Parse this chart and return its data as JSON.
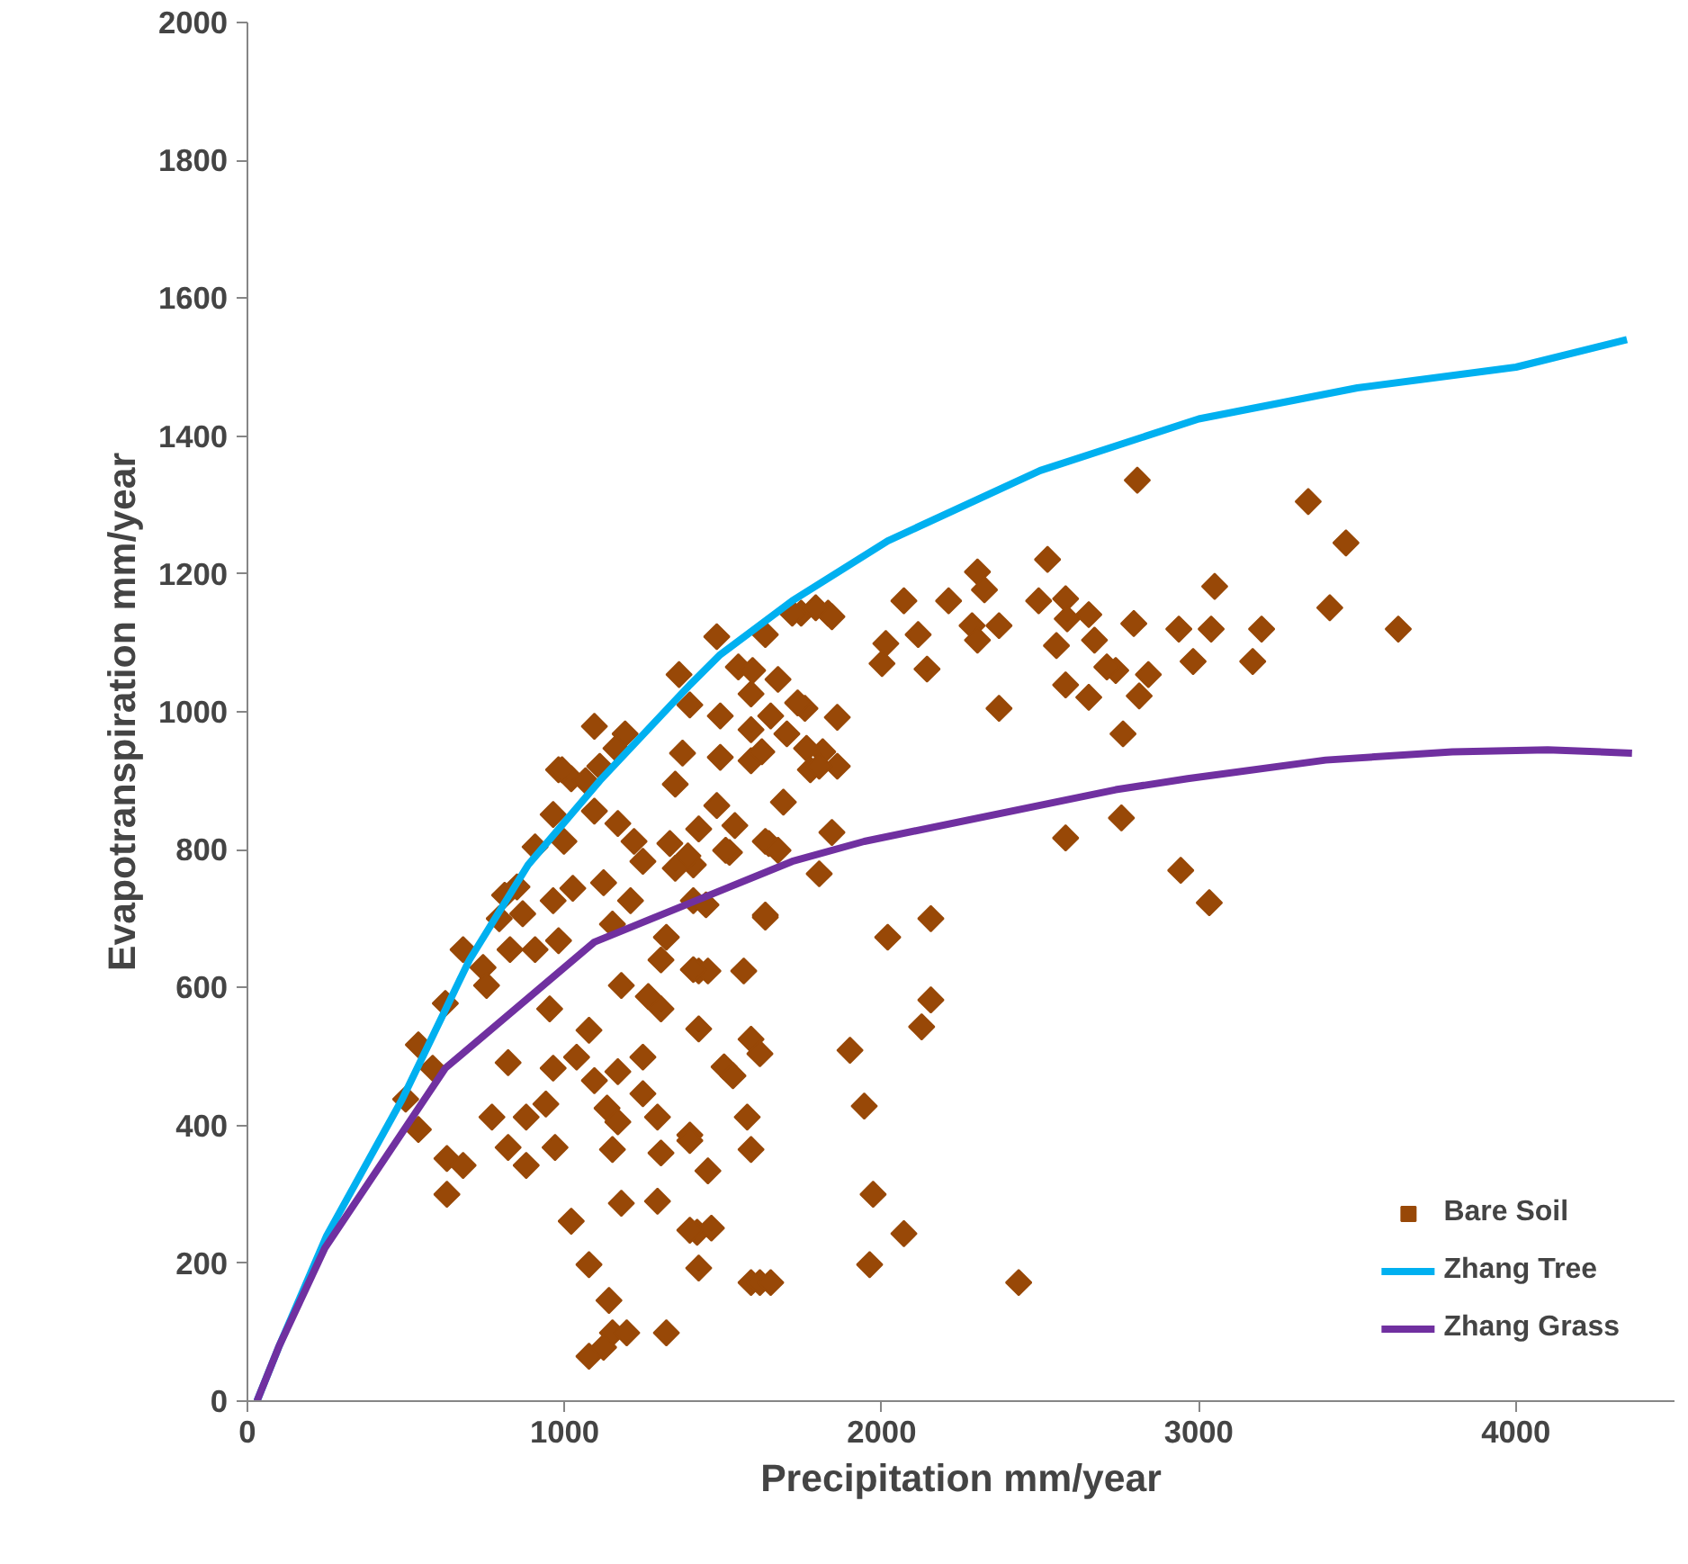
{
  "chart_data": {
    "type": "scatter",
    "xlabel": "Precipitation mm/year",
    "ylabel": "Evapotranspiration mm/year",
    "xlim": [
      0,
      4500
    ],
    "ylim": [
      0,
      2000
    ],
    "xticks": [
      0,
      1000,
      2000,
      3000,
      4000
    ],
    "yticks": [
      0,
      200,
      400,
      600,
      800,
      1000,
      1200,
      1400,
      1600,
      1800,
      2000
    ],
    "grid": false,
    "legend": "bottom right",
    "series": [
      {
        "name": "Bare Soil",
        "marker": "diamond",
        "color": "#984807",
        "x": [
          2806,
          3345,
          3464,
          3050,
          2795,
          2937,
          3039,
          3198,
          3413,
          3629,
          2982,
          3170,
          2841,
          2812,
          2761,
          2756,
          2943,
          3033,
          2738,
          2523,
          2302,
          2324,
          2211,
          2070,
          2495,
          2580,
          2285,
          2370,
          2585,
          2653,
          2115,
          2013,
          2302,
          2551,
          2671,
          2001,
          2143,
          2710,
          2580,
          2653,
          2370,
          1860,
          1843,
          1803,
          2580,
          2019,
          2155,
          2155,
          2126,
          1900,
          1945,
          1973,
          2070,
          1962,
          2432,
          1746,
          1831,
          1758,
          1814,
          1860,
          1775,
          1633,
          1565,
          1423,
          1452,
          1423,
          1588,
          1616,
          1503,
          1531,
          1576,
          1588,
          1395,
          1452,
          1418,
          1463,
          1423,
          1588,
          1616,
          1650,
          1406,
          1520,
          1644,
          1792,
          1718,
          1843,
          1633,
          1480,
          1361,
          1548,
          1593,
          1673,
          1588,
          1735,
          1395,
          1491,
          1650,
          1094,
          1191,
          1162,
          1588,
          1701,
          1763,
          1803,
          1372,
          1491,
          1588,
          1622,
          981,
          1021,
          1111,
          1349,
          1690,
          1480,
          1094,
          1168,
          1423,
          1537,
          1633,
          1673,
          964,
          998,
          1219,
          1332,
          1389,
          1247,
          1349,
          1508,
          1026,
          1123,
          1208,
          964,
          1406,
          1633,
          1151,
          1321,
          1446,
          981,
          1304,
          1406,
          1179,
          992,
          1066,
          907,
          811,
          794,
          680,
          743,
          624,
          539,
          499,
          539,
          629,
          629,
          680,
          584,
          850,
          868,
          754,
          907,
          828,
          953,
          1077,
          1264,
          1304,
          822,
          964,
          1038,
          1094,
          1168,
          1247,
          1247,
          771,
          879,
          941,
          1134,
          1168,
          1293,
          822,
          970,
          1151,
          1304,
          1395,
          879,
          1179,
          1293,
          1395,
          1021,
          1077,
          1140,
          1151,
          1196,
          1321,
          1077,
          1123
        ],
        "values": [
          1336,
          1305,
          1245,
          1182,
          1128,
          1120,
          1120,
          1120,
          1151,
          1120,
          1073,
          1073,
          1054,
          1023,
          968,
          846,
          770,
          723,
          1060,
          1221,
          1203,
          1177,
          1161,
          1161,
          1161,
          1164,
          1125,
          1125,
          1135,
          1141,
          1112,
          1099,
          1104,
          1096,
          1104,
          1070,
          1062,
          1065,
          1039,
          1021,
          1005,
          992,
          825,
          765,
          817,
          673,
          700,
          582,
          543,
          509,
          428,
          300,
          243,
          198,
          172,
          1143,
          1143,
          1005,
          942,
          921,
          916,
          702,
          624,
          624,
          624,
          540,
          525,
          504,
          485,
          472,
          412,
          365,
          386,
          334,
          245,
          251,
          193,
          172,
          172,
          172,
          778,
          796,
          809,
          1151,
          1143,
          1138,
          1112,
          1109,
          1054,
          1065,
          1060,
          1047,
          1026,
          1013,
          1010,
          994,
          994,
          979,
          968,
          947,
          974,
          968,
          947,
          921,
          940,
          934,
          929,
          942,
          916,
          903,
          921,
          895,
          869,
          864,
          856,
          838,
          830,
          835,
          812,
          799,
          851,
          812,
          812,
          809,
          791,
          783,
          773,
          799,
          744,
          752,
          726,
          726,
          726,
          705,
          692,
          673,
          720,
          668,
          640,
          626,
          603,
          916,
          900,
          804,
          734,
          700,
          655,
          629,
          577,
          517,
          438,
          394,
          352,
          300,
          342,
          483,
          746,
          707,
          603,
          655,
          655,
          569,
          538,
          587,
          569,
          491,
          483,
          499,
          465,
          478,
          499,
          446,
          412,
          412,
          431,
          425,
          405,
          412,
          368,
          368,
          365,
          360,
          378,
          342,
          287,
          290,
          248,
          261,
          198,
          146,
          99,
          99,
          99,
          65,
          78
        ]
      },
      {
        "name": "Zhang Tree",
        "type": "line",
        "color": "#00b0f0",
        "x": [
          30,
          100,
          250,
          488,
          700,
          885,
          1111,
          1395,
          1491,
          1718,
          2019,
          2500,
          3000,
          3500,
          4000,
          4350
        ],
        "values": [
          0,
          80,
          240,
          438,
          640,
          778,
          900,
          1039,
          1083,
          1161,
          1248,
          1350,
          1425,
          1470,
          1500,
          1540
        ]
      },
      {
        "name": "Zhang Grass",
        "type": "line",
        "color": "#7030a0",
        "x": [
          30,
          100,
          244,
          624,
          1094,
          1718,
          1945,
          2738,
          2965,
          3400,
          3799,
          4100,
          4366
        ],
        "values": [
          0,
          80,
          222,
          483,
          666,
          783,
          812,
          887,
          903,
          930,
          942,
          945,
          940
        ]
      }
    ]
  }
}
